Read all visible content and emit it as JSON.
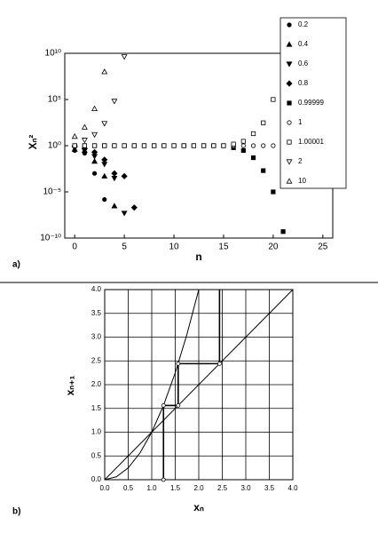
{
  "chart_data": [
    {
      "type": "scatter",
      "panel_label": "a)",
      "xlabel": "n",
      "ylabel": "Xₙ²",
      "xlim": [
        -1,
        26
      ],
      "ylim": [
        1e-10,
        10000000000.0
      ],
      "yscale": "log",
      "xticks": [
        0,
        5,
        10,
        15,
        20,
        25
      ],
      "yticks": [
        {
          "value": 1e-10,
          "label": "10⁻¹⁰"
        },
        {
          "value": 1e-05,
          "label": "10⁻⁵"
        },
        {
          "value": 1,
          "label": "10⁰"
        },
        {
          "value": 100000,
          "label": "10⁵"
        },
        {
          "value": 10000000000,
          "label": "10¹⁰"
        }
      ],
      "legend": "upper right",
      "series": [
        {
          "name": "0.2",
          "color": "#000000",
          "marker": "circle",
          "filled": true,
          "x": [
            0,
            1,
            2,
            3
          ],
          "values": [
            0.3,
            0.15,
            0.001,
            1.5e-06
          ]
        },
        {
          "name": "0.4",
          "color": "#000000",
          "marker": "triangle-up",
          "filled": true,
          "x": [
            0,
            1,
            2,
            3,
            4
          ],
          "values": [
            0.4,
            0.3,
            0.02,
            0.0005,
            3e-07
          ]
        },
        {
          "name": "0.6",
          "color": "#000000",
          "marker": "triangle-down",
          "filled": true,
          "x": [
            0,
            1,
            2,
            3,
            4,
            5
          ],
          "values": [
            0.6,
            0.3,
            0.07,
            0.01,
            0.0003,
            5e-08
          ]
        },
        {
          "name": "0.8",
          "color": "#000000",
          "marker": "diamond",
          "filled": true,
          "x": [
            0,
            1,
            2,
            3,
            4,
            5,
            6
          ],
          "values": [
            0.8,
            0.5,
            0.2,
            0.03,
            0.001,
            0.0005,
            2e-07
          ]
        },
        {
          "name": "0.99999",
          "color": "#000000",
          "marker": "square",
          "filled": true,
          "x": [
            0,
            1,
            2,
            3,
            4,
            5,
            6,
            7,
            8,
            9,
            10,
            11,
            12,
            13,
            14,
            15,
            16,
            17,
            18,
            19,
            20,
            21
          ],
          "values": [
            1,
            1,
            1,
            1,
            1,
            1,
            1,
            1,
            1,
            1,
            1,
            1,
            1,
            1,
            1,
            1,
            0.6,
            0.3,
            0.05,
            0.002,
            1e-05,
            5e-10
          ]
        },
        {
          "name": "1",
          "color": "#000000",
          "marker": "circle",
          "filled": false,
          "x": [
            0,
            1,
            2,
            3,
            4,
            5,
            6,
            7,
            8,
            9,
            10,
            11,
            12,
            13,
            14,
            15,
            16,
            17,
            18,
            19,
            20,
            21,
            22,
            23,
            24,
            25
          ],
          "values": [
            1,
            1,
            1,
            1,
            1,
            1,
            1,
            1,
            1,
            1,
            1,
            1,
            1,
            1,
            1,
            1,
            1,
            1,
            1,
            1,
            1,
            1,
            1,
            1,
            1,
            1
          ]
        },
        {
          "name": "1.00001",
          "color": "#000000",
          "marker": "square",
          "filled": false,
          "x": [
            0,
            1,
            2,
            3,
            4,
            5,
            6,
            7,
            8,
            9,
            10,
            11,
            12,
            13,
            14,
            15,
            16,
            17,
            18,
            19,
            20,
            21
          ],
          "values": [
            1,
            1,
            1,
            1,
            1,
            1,
            1,
            1,
            1,
            1,
            1,
            1,
            1,
            1,
            1,
            1,
            1.5,
            3,
            20,
            300,
            100000,
            1000000000
          ]
        },
        {
          "name": "2",
          "color": "#000000",
          "marker": "triangle-down",
          "filled": false,
          "x": [
            1,
            2,
            3,
            4,
            5
          ],
          "values": [
            4,
            16,
            256,
            65536,
            4300000000
          ]
        },
        {
          "name": "10",
          "color": "#000000",
          "marker": "triangle-up",
          "filled": false,
          "x": [
            0,
            1,
            2,
            3
          ],
          "values": [
            10,
            100,
            10000,
            100000000
          ]
        }
      ]
    },
    {
      "type": "line",
      "panel_label": "b)",
      "xlabel": "xₙ",
      "ylabel": "xₙ₊₁",
      "xlim": [
        0,
        4
      ],
      "ylim": [
        0,
        4
      ],
      "grid": true,
      "xticks": [
        {
          "value": 0,
          "label": "0.0"
        },
        {
          "value": 0.5,
          "label": "0.5"
        },
        {
          "value": 1,
          "label": "1.0"
        },
        {
          "value": 1.5,
          "label": "1.5"
        },
        {
          "value": 2,
          "label": "2.0"
        },
        {
          "value": 2.5,
          "label": "2.5"
        },
        {
          "value": 3,
          "label": "3.0"
        },
        {
          "value": 3.5,
          "label": "3.5"
        },
        {
          "value": 4,
          "label": "4.0"
        }
      ],
      "yticks": [
        {
          "value": 0,
          "label": "0.0"
        },
        {
          "value": 0.5,
          "label": "0.5"
        },
        {
          "value": 1,
          "label": "1.0"
        },
        {
          "value": 1.5,
          "label": "1.5"
        },
        {
          "value": 2,
          "label": "2.0"
        },
        {
          "value": 2.5,
          "label": "2.5"
        },
        {
          "value": 3,
          "label": "3.0"
        },
        {
          "value": 3.5,
          "label": "3.5"
        },
        {
          "value": 4,
          "label": "4.0"
        }
      ],
      "series": [
        {
          "color": "#000000",
          "width": 1,
          "x": [
            0,
            0.25,
            0.5,
            0.75,
            1,
            1.25,
            1.5,
            1.75,
            2
          ],
          "values": [
            0,
            0.0625,
            0.25,
            0.5625,
            1,
            1.5625,
            2.25,
            3.0625,
            4
          ]
        },
        {
          "color": "#000000",
          "width": 1,
          "x": [
            0,
            4
          ],
          "values": [
            0,
            4
          ]
        },
        {
          "color": "#000000",
          "width": 1.6,
          "markers": true,
          "x": [
            1.25,
            1.25,
            1.5625,
            1.5625,
            2.4414,
            2.4414
          ],
          "values": [
            0,
            1.5625,
            1.5625,
            2.4414,
            2.4414,
            4
          ]
        }
      ]
    }
  ]
}
